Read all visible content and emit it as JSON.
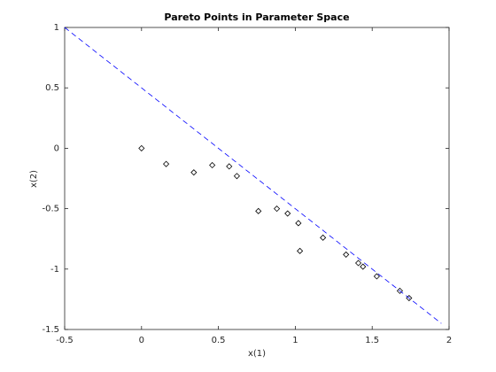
{
  "chart_data": {
    "type": "scatter",
    "title": "Pareto Points in Parameter Space",
    "x_label": "x(1)",
    "y_label": "x(2)",
    "xlim": [
      -0.5,
      2
    ],
    "ylim": [
      -1.5,
      1
    ],
    "xticks": [
      -0.5,
      0,
      0.5,
      1,
      1.5,
      2
    ],
    "yticks": [
      -1.5,
      -1,
      -0.5,
      0,
      0.5,
      1
    ],
    "series": [
      {
        "type": "scatter",
        "color": "#000000",
        "x": [
          0,
          0.16,
          0.34,
          0.46,
          0.57,
          0.62,
          0.76,
          0.88,
          0.95,
          1.02,
          1.03,
          1.18,
          1.33,
          1.41,
          1.44,
          1.53,
          1.68,
          1.74
        ],
        "values": [
          0,
          -0.13,
          -0.2,
          -0.14,
          -0.15,
          -0.23,
          -0.52,
          -0.5,
          -0.54,
          -0.62,
          -0.85,
          -0.74,
          -0.88,
          -0.95,
          -0.98,
          -1.06,
          -1.18,
          -1.24
        ]
      },
      {
        "type": "line",
        "color": "#0000ff",
        "x": [
          -0.5,
          1.95
        ],
        "values": [
          1,
          -1.45
        ]
      }
    ]
  }
}
